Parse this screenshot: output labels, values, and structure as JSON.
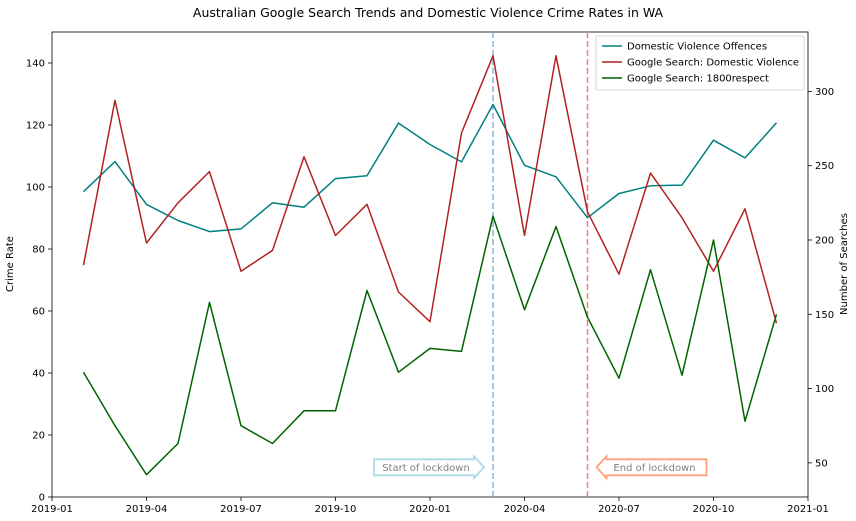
{
  "chart_data": {
    "type": "line",
    "title": "Australian Google Search Trends and Domestic Violence Crime Rates in WA",
    "ylabel_left": "Crime Rate",
    "ylabel_right": "Number of Searches",
    "xlim": [
      "2019-01",
      "2021-01"
    ],
    "ylim_left": [
      0,
      150
    ],
    "ylim_right": [
      27,
      340
    ],
    "x_ticks": [
      "2019-01",
      "2019-04",
      "2019-07",
      "2019-10",
      "2020-01",
      "2020-04",
      "2020-07",
      "2020-10",
      "2021-01"
    ],
    "y_ticks_left": [
      0,
      20,
      40,
      60,
      80,
      100,
      120,
      140
    ],
    "y_ticks_right": [
      50,
      100,
      150,
      200,
      250,
      300
    ],
    "x": [
      "2019-02",
      "2019-03",
      "2019-04",
      "2019-05",
      "2019-06",
      "2019-07",
      "2019-08",
      "2019-09",
      "2019-10",
      "2019-11",
      "2019-12",
      "2020-01",
      "2020-02",
      "2020-03",
      "2020-04",
      "2020-05",
      "2020-06",
      "2020-07",
      "2020-08",
      "2020-09",
      "2020-10",
      "2020-11",
      "2020-12"
    ],
    "series": [
      {
        "name": "Domestic Violence Offences",
        "axis": "left",
        "color": "#008080",
        "values": [
          98.5,
          108.2,
          94.4,
          89.2,
          85.6,
          86.5,
          94.9,
          93.5,
          102.7,
          103.6,
          120.6,
          113.7,
          108.1,
          126.6,
          107.0,
          103.3,
          90.1,
          97.9,
          100.4,
          100.6,
          115.1,
          109.4,
          120.7
        ]
      },
      {
        "name": "Google Search: Domestic Violence",
        "axis": "right",
        "color": "#b22222",
        "values": [
          183,
          294,
          198,
          225,
          246,
          179,
          193,
          256,
          203,
          224,
          165,
          145,
          272,
          324,
          203,
          324,
          219,
          177,
          245,
          215,
          179,
          221,
          144
        ]
      },
      {
        "name": "Google Search: 1800respect",
        "axis": "right",
        "color": "#006400",
        "values": [
          111,
          75,
          42,
          63,
          158,
          75,
          63,
          85,
          85,
          166,
          111,
          127,
          125,
          216,
          153,
          209,
          148,
          107,
          180,
          109,
          200,
          78,
          150
        ]
      }
    ],
    "vlines": [
      {
        "x": "2020-03",
        "color": "#8ab4d6"
      },
      {
        "x": "2020-06",
        "color": "#f08080"
      }
    ],
    "annotations": [
      {
        "text": "Start of lockdown",
        "direction": "right",
        "color": "#add8e6",
        "x": "2020-03",
        "y_right": 47
      },
      {
        "text": "End of lockdown",
        "direction": "left",
        "color": "#ffa07a",
        "x": "2020-06",
        "y_right": 47
      }
    ],
    "legend_position": "top-right",
    "grid": false
  }
}
